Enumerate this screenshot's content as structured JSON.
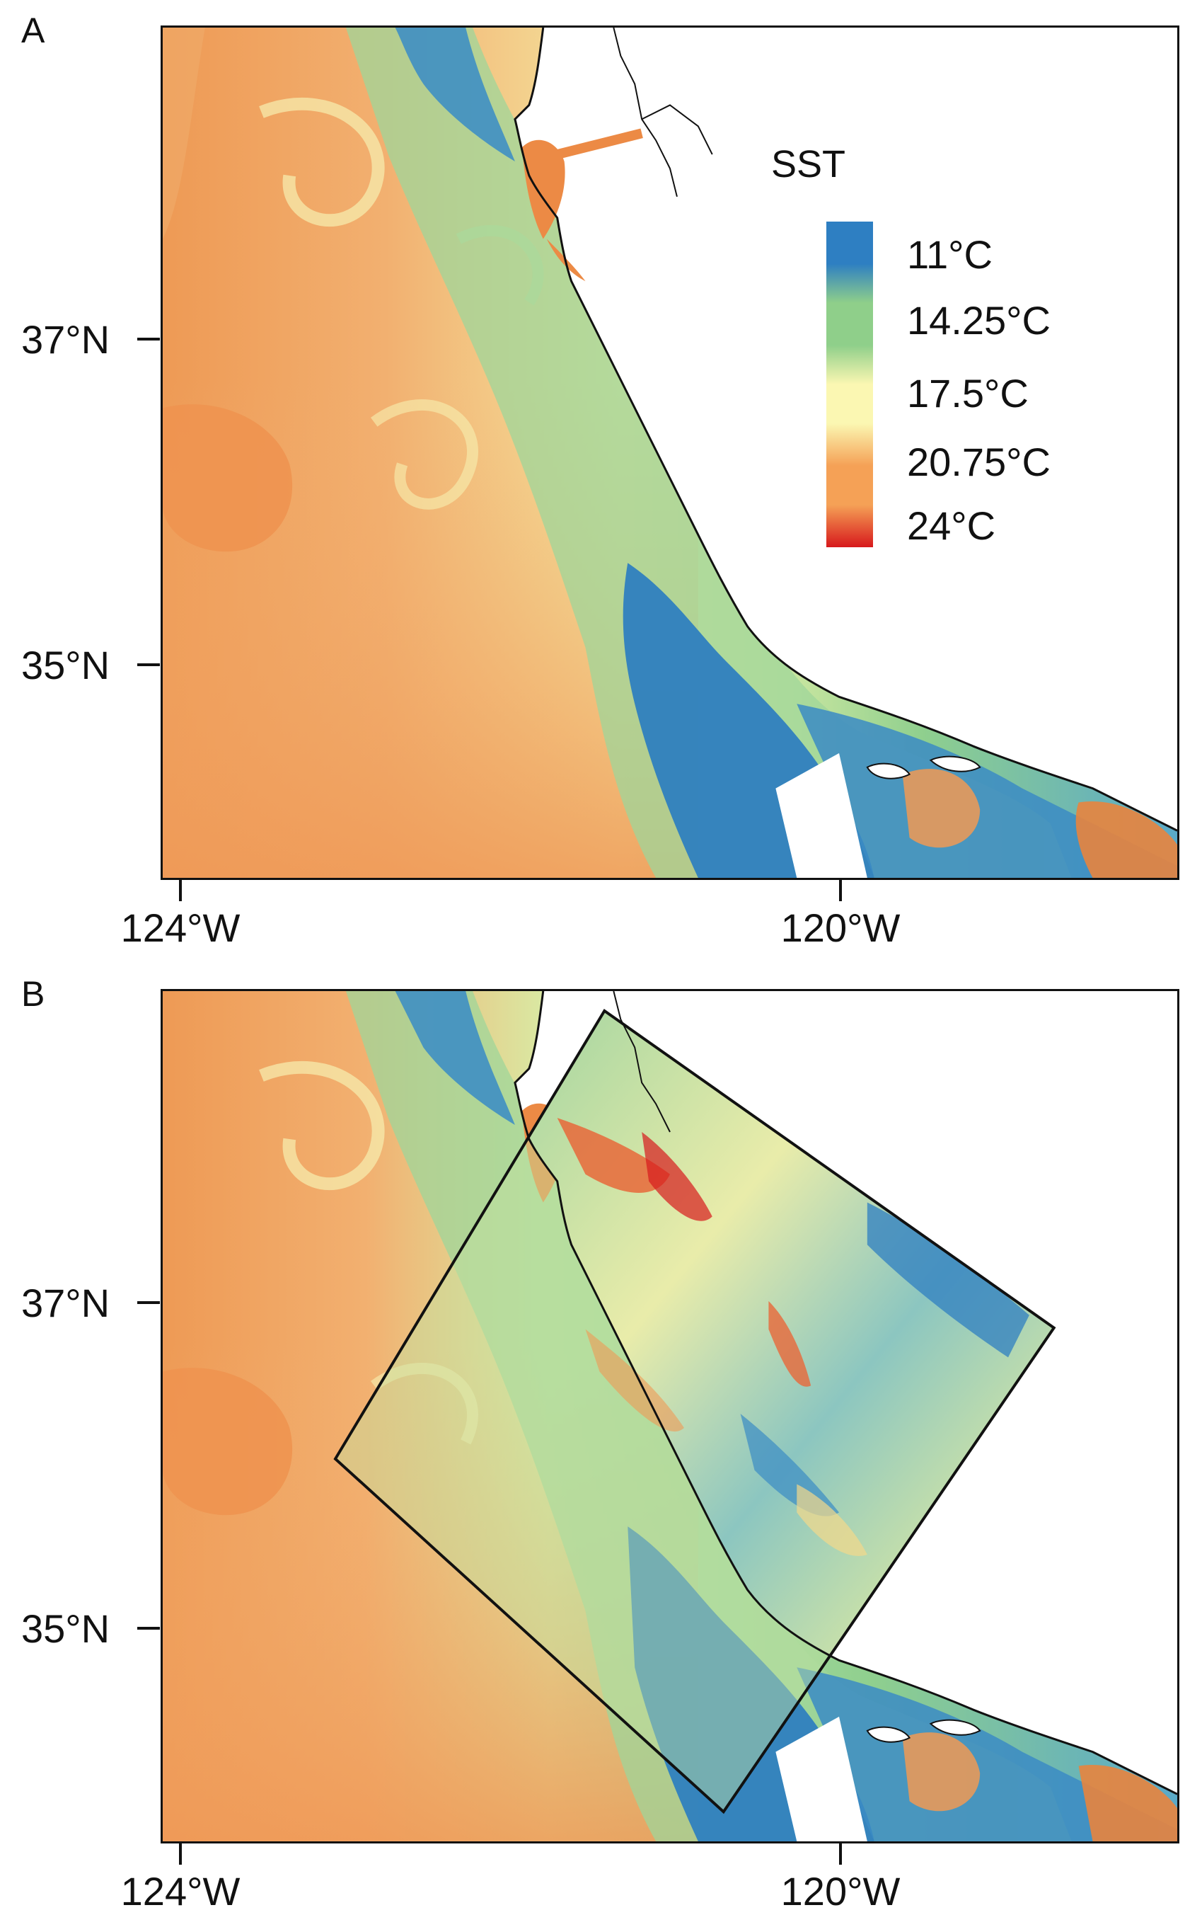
{
  "panels": [
    {
      "label": "A",
      "lat_labels": [
        "37°N",
        "35°N"
      ],
      "lon_labels": [
        "124°W",
        "120°W"
      ],
      "legend": {
        "title": "SST",
        "entries": [
          "11°C",
          "14.25°C",
          "17.5°C",
          "20.75°C",
          "24°C"
        ]
      }
    },
    {
      "label": "B",
      "lat_labels": [
        "37°N",
        "35°N"
      ],
      "lon_labels": [
        "124°W",
        "120°W"
      ]
    }
  ],
  "legend_colors": [
    "#2e7fc2",
    "#8fcf8a",
    "#fbf7b2",
    "#f5a156",
    "#d7191c"
  ],
  "ocean_colors": {
    "coastal_cold": "#3a8fc4",
    "nearshore": "#9fd59a",
    "mid": "#f3f0a6",
    "offshore_warm": "#f2ad6a",
    "offshore_hot": "#ee9450"
  },
  "land_color": "#ffffff",
  "boundary_color": "#111111",
  "icons": [
    "sst-map",
    "coastline",
    "inset-region-box"
  ]
}
